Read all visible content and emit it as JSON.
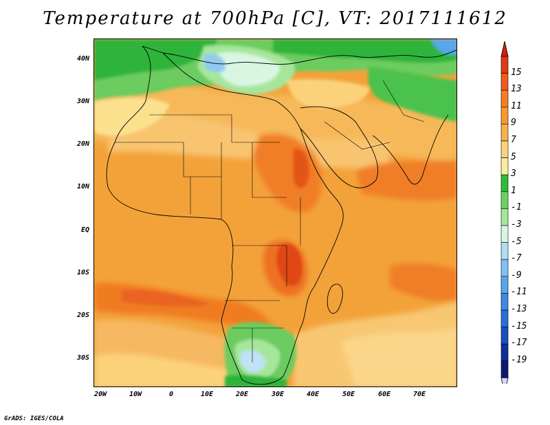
{
  "title": "Temperature at 700hPa [C], VT: 2017111612",
  "footer": "GrADS: IGES/COLA",
  "map": {
    "lon_range": [
      -25,
      80
    ],
    "lat_range": [
      -37,
      45
    ],
    "lat_labels": [
      {
        "lat": 40,
        "label": "40N"
      },
      {
        "lat": 30,
        "label": "30N"
      },
      {
        "lat": 20,
        "label": "20N"
      },
      {
        "lat": 10,
        "label": "10N"
      },
      {
        "lat": 0,
        "label": "EQ"
      },
      {
        "lat": -10,
        "label": "10S"
      },
      {
        "lat": -20,
        "label": "20S"
      },
      {
        "lat": -30,
        "label": "30S"
      }
    ],
    "lon_labels": [
      {
        "lon": -20,
        "label": "20W"
      },
      {
        "lon": -10,
        "label": "10W"
      },
      {
        "lon": 0,
        "label": "0"
      },
      {
        "lon": 10,
        "label": "10E"
      },
      {
        "lon": 20,
        "label": "20E"
      },
      {
        "lon": 30,
        "label": "30E"
      },
      {
        "lon": 40,
        "label": "40E"
      },
      {
        "lon": 50,
        "label": "50E"
      },
      {
        "lon": 60,
        "label": "60E"
      },
      {
        "lon": 70,
        "label": "70E"
      }
    ]
  },
  "colorbar": {
    "labels": [
      "15",
      "13",
      "11",
      "9",
      "7",
      "5",
      "3",
      "1",
      "-1",
      "-3",
      "-5",
      "-7",
      "-9",
      "-11",
      "-13",
      "-15",
      "-17",
      "-19"
    ],
    "colors_top_to_bottom": [
      "#e03a16",
      "#f05a1c",
      "#f57d25",
      "#f39a30",
      "#f6b14d",
      "#fbd27a",
      "#fbeb9c",
      "#2ebc3a",
      "#6cd064",
      "#a4e69a",
      "#d7f6e2",
      "#b2dcf5",
      "#82c0ef",
      "#5aa6ea",
      "#3d89e3",
      "#2b6ed6",
      "#1a4fc0",
      "#0f2f9c",
      "#0a1a6e"
    ],
    "top_arrow_color": "#d41f10",
    "bottom_arrow_color": "#d8d4f4"
  }
}
